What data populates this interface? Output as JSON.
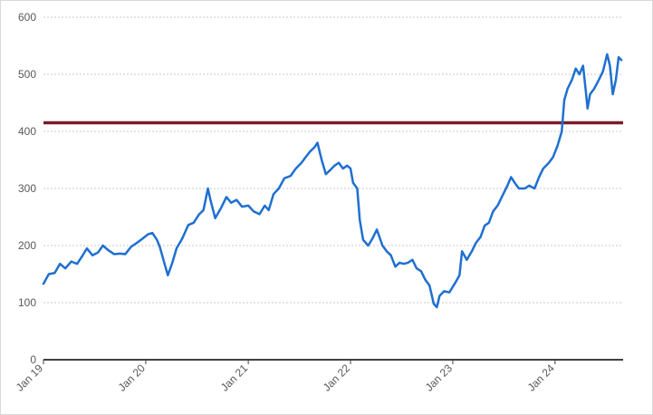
{
  "chart_data": {
    "type": "line",
    "title": "",
    "xlabel": "",
    "ylabel": "",
    "ylim": [
      0,
      600
    ],
    "yticks": [
      "0",
      "100",
      "200",
      "300",
      "400",
      "500",
      "600"
    ],
    "xlim": [
      "2019-01-01",
      "2024-08-31"
    ],
    "xticks": [
      {
        "date": "2019-01-01",
        "label": "Jan 19"
      },
      {
        "date": "2020-01-01",
        "label": "Jan 20"
      },
      {
        "date": "2021-01-01",
        "label": "Jan 21"
      },
      {
        "date": "2022-01-01",
        "label": "Jan 22"
      },
      {
        "date": "2023-01-01",
        "label": "Jan 23"
      },
      {
        "date": "2024-01-01",
        "label": "Jan 24"
      }
    ],
    "grid": true,
    "legend": "none",
    "reference_line": {
      "value": 415,
      "color": "#7b1b2d"
    },
    "series": [
      {
        "color": "#1f6fd1",
        "points": [
          [
            "2019-01-01",
            133
          ],
          [
            "2019-01-20",
            150
          ],
          [
            "2019-02-10",
            152
          ],
          [
            "2019-03-01",
            168
          ],
          [
            "2019-03-20",
            160
          ],
          [
            "2019-04-10",
            172
          ],
          [
            "2019-05-01",
            168
          ],
          [
            "2019-05-20",
            182
          ],
          [
            "2019-06-05",
            195
          ],
          [
            "2019-06-25",
            183
          ],
          [
            "2019-07-15",
            188
          ],
          [
            "2019-08-01",
            200
          ],
          [
            "2019-08-20",
            192
          ],
          [
            "2019-09-10",
            185
          ],
          [
            "2019-10-01",
            186
          ],
          [
            "2019-10-20",
            185
          ],
          [
            "2019-11-10",
            198
          ],
          [
            "2019-12-01",
            205
          ],
          [
            "2019-12-20",
            212
          ],
          [
            "2020-01-10",
            220
          ],
          [
            "2020-01-25",
            222
          ],
          [
            "2020-02-10",
            210
          ],
          [
            "2020-02-20",
            198
          ],
          [
            "2020-03-10",
            165
          ],
          [
            "2020-03-20",
            148
          ],
          [
            "2020-04-05",
            170
          ],
          [
            "2020-04-20",
            195
          ],
          [
            "2020-05-10",
            212
          ],
          [
            "2020-06-01",
            236
          ],
          [
            "2020-06-20",
            240
          ],
          [
            "2020-07-10",
            255
          ],
          [
            "2020-07-25",
            262
          ],
          [
            "2020-08-10",
            300
          ],
          [
            "2020-08-20",
            278
          ],
          [
            "2020-09-05",
            248
          ],
          [
            "2020-09-25",
            265
          ],
          [
            "2020-10-15",
            285
          ],
          [
            "2020-11-01",
            275
          ],
          [
            "2020-11-20",
            280
          ],
          [
            "2020-12-10",
            268
          ],
          [
            "2021-01-01",
            270
          ],
          [
            "2021-01-20",
            260
          ],
          [
            "2021-02-10",
            255
          ],
          [
            "2021-03-01",
            270
          ],
          [
            "2021-03-15",
            262
          ],
          [
            "2021-04-01",
            290
          ],
          [
            "2021-04-20",
            300
          ],
          [
            "2021-05-10",
            318
          ],
          [
            "2021-06-01",
            322
          ],
          [
            "2021-06-20",
            335
          ],
          [
            "2021-07-10",
            345
          ],
          [
            "2021-07-25",
            355
          ],
          [
            "2021-08-10",
            365
          ],
          [
            "2021-08-25",
            372
          ],
          [
            "2021-09-05",
            380
          ],
          [
            "2021-09-20",
            350
          ],
          [
            "2021-10-05",
            325
          ],
          [
            "2021-10-20",
            332
          ],
          [
            "2021-11-05",
            340
          ],
          [
            "2021-11-20",
            345
          ],
          [
            "2021-12-05",
            335
          ],
          [
            "2021-12-20",
            340
          ],
          [
            "2022-01-01",
            335
          ],
          [
            "2022-01-10",
            310
          ],
          [
            "2022-01-25",
            300
          ],
          [
            "2022-02-03",
            245
          ],
          [
            "2022-02-15",
            210
          ],
          [
            "2022-03-05",
            200
          ],
          [
            "2022-03-20",
            212
          ],
          [
            "2022-04-05",
            228
          ],
          [
            "2022-04-25",
            200
          ],
          [
            "2022-05-10",
            190
          ],
          [
            "2022-05-25",
            183
          ],
          [
            "2022-06-10",
            163
          ],
          [
            "2022-06-25",
            170
          ],
          [
            "2022-07-10",
            168
          ],
          [
            "2022-07-25",
            170
          ],
          [
            "2022-08-10",
            175
          ],
          [
            "2022-08-25",
            160
          ],
          [
            "2022-09-10",
            155
          ],
          [
            "2022-09-25",
            140
          ],
          [
            "2022-10-10",
            130
          ],
          [
            "2022-10-25",
            98
          ],
          [
            "2022-11-05",
            92
          ],
          [
            "2022-11-15",
            112
          ],
          [
            "2022-12-01",
            120
          ],
          [
            "2022-12-20",
            118
          ],
          [
            "2023-01-10",
            135
          ],
          [
            "2023-01-25",
            148
          ],
          [
            "2023-02-03",
            190
          ],
          [
            "2023-02-20",
            175
          ],
          [
            "2023-03-10",
            190
          ],
          [
            "2023-03-25",
            205
          ],
          [
            "2023-04-10",
            215
          ],
          [
            "2023-04-25",
            235
          ],
          [
            "2023-05-10",
            240
          ],
          [
            "2023-05-25",
            260
          ],
          [
            "2023-06-10",
            270
          ],
          [
            "2023-06-25",
            285
          ],
          [
            "2023-07-15",
            305
          ],
          [
            "2023-07-28",
            320
          ],
          [
            "2023-08-10",
            310
          ],
          [
            "2023-08-25",
            300
          ],
          [
            "2023-09-15",
            300
          ],
          [
            "2023-10-01",
            305
          ],
          [
            "2023-10-20",
            300
          ],
          [
            "2023-11-05",
            320
          ],
          [
            "2023-11-20",
            335
          ],
          [
            "2023-12-10",
            345
          ],
          [
            "2023-12-25",
            355
          ],
          [
            "2024-01-10",
            375
          ],
          [
            "2024-01-25",
            400
          ],
          [
            "2024-02-03",
            455
          ],
          [
            "2024-02-15",
            475
          ],
          [
            "2024-03-01",
            490
          ],
          [
            "2024-03-15",
            510
          ],
          [
            "2024-03-28",
            500
          ],
          [
            "2024-04-10",
            515
          ],
          [
            "2024-04-20",
            470
          ],
          [
            "2024-04-26",
            440
          ],
          [
            "2024-05-05",
            465
          ],
          [
            "2024-05-20",
            475
          ],
          [
            "2024-06-05",
            490
          ],
          [
            "2024-06-20",
            505
          ],
          [
            "2024-07-05",
            535
          ],
          [
            "2024-07-15",
            515
          ],
          [
            "2024-07-25",
            465
          ],
          [
            "2024-08-05",
            490
          ],
          [
            "2024-08-15",
            530
          ],
          [
            "2024-08-25",
            525
          ]
        ]
      }
    ]
  }
}
